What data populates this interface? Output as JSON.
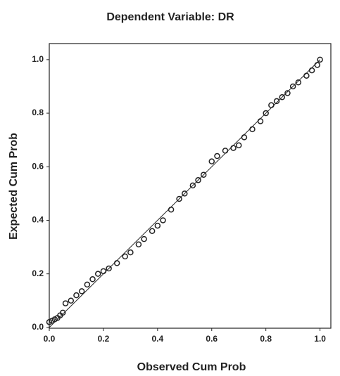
{
  "chart_data": {
    "type": "scatter",
    "title": "Dependent Variable: DR",
    "x_label": "Observed Cum Prob",
    "y_label": "Expected Cum Prob",
    "x": [
      0.0,
      0.01,
      0.02,
      0.03,
      0.04,
      0.05,
      0.06,
      0.08,
      0.1,
      0.12,
      0.14,
      0.16,
      0.18,
      0.2,
      0.22,
      0.25,
      0.28,
      0.3,
      0.33,
      0.35,
      0.38,
      0.4,
      0.42,
      0.45,
      0.48,
      0.5,
      0.53,
      0.55,
      0.57,
      0.6,
      0.62,
      0.65,
      0.68,
      0.7,
      0.72,
      0.75,
      0.78,
      0.8,
      0.82,
      0.84,
      0.86,
      0.88,
      0.9,
      0.92,
      0.95,
      0.97,
      0.99,
      1.0
    ],
    "values": [
      0.02,
      0.025,
      0.03,
      0.035,
      0.045,
      0.055,
      0.09,
      0.1,
      0.12,
      0.135,
      0.16,
      0.18,
      0.2,
      0.21,
      0.22,
      0.24,
      0.265,
      0.28,
      0.31,
      0.33,
      0.36,
      0.38,
      0.4,
      0.44,
      0.48,
      0.5,
      0.53,
      0.55,
      0.57,
      0.62,
      0.64,
      0.66,
      0.67,
      0.68,
      0.71,
      0.74,
      0.77,
      0.8,
      0.83,
      0.845,
      0.86,
      0.875,
      0.9,
      0.915,
      0.94,
      0.96,
      0.98,
      1.0
    ],
    "color": "#222222",
    "xlim": [
      0,
      1.04
    ],
    "ylim": [
      -0.003,
      1.06
    ],
    "xticks": [
      {
        "value": 0,
        "label": "0.0"
      },
      0.2,
      0.4,
      0.6,
      0.8,
      {
        "value": 1,
        "label": "1.0"
      }
    ],
    "yticks": [
      {
        "value": 0,
        "label": "0.0"
      },
      0.2,
      0.4,
      0.6,
      0.8,
      {
        "value": 1,
        "label": "1.0"
      }
    ]
  }
}
